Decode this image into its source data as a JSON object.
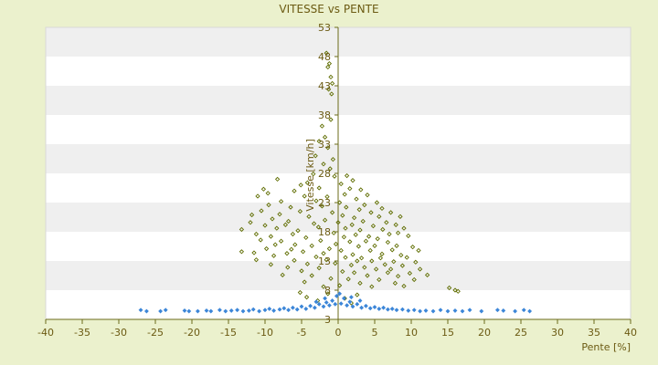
{
  "colors": {
    "background": "#ebf1cd",
    "plot_band_light": "#ffffff",
    "plot_band_dark": "#efefef",
    "axis": "#6b6b1a",
    "text": "#6b5a12",
    "series_high": "#5f6d00",
    "series_low": "#3c86d8"
  },
  "chart_data": {
    "type": "scatter",
    "title": "VITESSE vs PENTE",
    "xlabel": "Pente [%]",
    "ylabel": "Vitesse [km/h]",
    "xlim": [
      -40,
      40
    ],
    "ylim": [
      3,
      53
    ],
    "x_ticks": [
      -40,
      -35,
      -30,
      -25,
      -20,
      -15,
      -10,
      -5,
      0,
      5,
      10,
      15,
      20,
      25,
      30,
      35,
      40
    ],
    "y_ticks": [
      3,
      8,
      13,
      18,
      23,
      28,
      33,
      38,
      43,
      48,
      53
    ],
    "grid": "horizontal-bands",
    "legend": "none",
    "series": [
      {
        "marker": "diamond",
        "color": "#5f6d00",
        "points": [
          [
            -1.6,
            48.6
          ],
          [
            -1.2,
            46.8
          ],
          [
            -1.4,
            46.2
          ],
          [
            -1.0,
            44.5
          ],
          [
            -0.8,
            43.4
          ],
          [
            -1.3,
            42.4
          ],
          [
            -0.9,
            41.6
          ],
          [
            -1.0,
            37.2
          ],
          [
            -2.2,
            36.1
          ],
          [
            -1.8,
            34.2
          ],
          [
            -2.6,
            33.5
          ],
          [
            -1.4,
            32.4
          ],
          [
            -3.1,
            31.0
          ],
          [
            -0.7,
            30.4
          ],
          [
            -2.0,
            29.6
          ],
          [
            -1.1,
            28.8
          ],
          [
            -3.4,
            27.9
          ],
          [
            -0.5,
            27.5
          ],
          [
            -4.2,
            26.4
          ],
          [
            1.2,
            27.6
          ],
          [
            2.0,
            26.8
          ],
          [
            0.4,
            26.2
          ],
          [
            -8.3,
            27.0
          ],
          [
            -5.1,
            26.0
          ],
          [
            3.1,
            25.2
          ],
          [
            -2.6,
            25.5
          ],
          [
            1.6,
            25.4
          ],
          [
            0.9,
            24.4
          ],
          [
            -10.2,
            25.3
          ],
          [
            -9.6,
            24.6
          ],
          [
            -6.0,
            25.0
          ],
          [
            -4.6,
            24.1
          ],
          [
            -1.5,
            24.0
          ],
          [
            2.5,
            23.6
          ],
          [
            4.0,
            24.3
          ],
          [
            -11.0,
            24.1
          ],
          [
            -7.8,
            23.2
          ],
          [
            -3.0,
            23.3
          ],
          [
            0.2,
            23.0
          ],
          [
            3.6,
            22.6
          ],
          [
            5.3,
            23.0
          ],
          [
            -9.5,
            22.6
          ],
          [
            -6.5,
            22.2
          ],
          [
            -2.2,
            22.4
          ],
          [
            1.1,
            22.2
          ],
          [
            2.9,
            21.8
          ],
          [
            6.0,
            22.0
          ],
          [
            -10.5,
            21.6
          ],
          [
            -8.0,
            21.0
          ],
          [
            -5.2,
            21.5
          ],
          [
            -0.8,
            21.3
          ],
          [
            4.5,
            21.3
          ],
          [
            7.2,
            21.3
          ],
          [
            -11.8,
            20.9
          ],
          [
            -4.0,
            20.6
          ],
          [
            0.6,
            20.8
          ],
          [
            2.2,
            20.4
          ],
          [
            5.6,
            20.6
          ],
          [
            8.5,
            20.6
          ],
          [
            -9.0,
            20.2
          ],
          [
            -6.8,
            19.8
          ],
          [
            -1.8,
            20.0
          ],
          [
            3.4,
            19.8
          ],
          [
            6.6,
            19.6
          ],
          [
            -12.0,
            19.6
          ],
          [
            -10.0,
            19.1
          ],
          [
            -7.2,
            19.2
          ],
          [
            -3.3,
            19.4
          ],
          [
            0.0,
            19.6
          ],
          [
            1.9,
            19.2
          ],
          [
            4.8,
            19.0
          ],
          [
            7.9,
            19.2
          ],
          [
            9.0,
            18.6
          ],
          [
            -8.4,
            18.6
          ],
          [
            -5.5,
            18.2
          ],
          [
            -2.7,
            18.8
          ],
          [
            1.0,
            18.6
          ],
          [
            3.0,
            18.3
          ],
          [
            6.1,
            18.4
          ],
          [
            8.2,
            17.8
          ],
          [
            -13.2,
            18.4
          ],
          [
            -11.2,
            17.6
          ],
          [
            -6.2,
            17.6
          ],
          [
            -0.6,
            17.8
          ],
          [
            2.4,
            17.5
          ],
          [
            4.2,
            17.2
          ],
          [
            7.0,
            17.6
          ],
          [
            9.6,
            17.3
          ],
          [
            -9.2,
            17.2
          ],
          [
            -4.4,
            17.0
          ],
          [
            0.8,
            17.1
          ],
          [
            5.4,
            16.8
          ],
          [
            -10.6,
            16.6
          ],
          [
            -7.8,
            16.4
          ],
          [
            -2.4,
            16.5
          ],
          [
            1.6,
            16.3
          ],
          [
            3.8,
            16.4
          ],
          [
            6.8,
            16.2
          ],
          [
            -8.6,
            15.8
          ],
          [
            -5.9,
            15.8
          ],
          [
            -3.6,
            15.6
          ],
          [
            -0.3,
            15.9
          ],
          [
            2.8,
            15.5
          ],
          [
            5.0,
            15.6
          ],
          [
            8.0,
            15.6
          ],
          [
            10.2,
            15.4
          ],
          [
            -13.2,
            14.6
          ],
          [
            -9.8,
            15.1
          ],
          [
            -6.4,
            15.0
          ],
          [
            -1.2,
            15.1
          ],
          [
            0.4,
            14.8
          ],
          [
            4.4,
            14.8
          ],
          [
            7.4,
            14.9
          ],
          [
            11.0,
            14.8
          ],
          [
            -11.5,
            14.4
          ],
          [
            -7.0,
            14.3
          ],
          [
            -4.8,
            14.6
          ],
          [
            -2.0,
            14.3
          ],
          [
            2.0,
            14.1
          ],
          [
            6.0,
            14.2
          ],
          [
            8.6,
            14.0
          ],
          [
            -8.8,
            13.9
          ],
          [
            -3.0,
            13.7
          ],
          [
            1.0,
            13.6
          ],
          [
            3.2,
            13.5
          ],
          [
            5.8,
            13.5
          ],
          [
            9.4,
            13.6
          ],
          [
            -11.2,
            13.2
          ],
          [
            -6.0,
            13.1
          ],
          [
            -1.6,
            13.2
          ],
          [
            2.6,
            13.0
          ],
          [
            4.6,
            13.0
          ],
          [
            7.6,
            12.9
          ],
          [
            10.6,
            12.8
          ],
          [
            -9.2,
            12.4
          ],
          [
            -4.2,
            12.5
          ],
          [
            -0.4,
            12.6
          ],
          [
            1.8,
            12.3
          ],
          [
            6.4,
            12.4
          ],
          [
            8.8,
            12.2
          ],
          [
            -6.9,
            11.9
          ],
          [
            -2.6,
            11.8
          ],
          [
            3.6,
            11.9
          ],
          [
            5.2,
            11.6
          ],
          [
            7.2,
            11.6
          ],
          [
            11.2,
            11.6
          ],
          [
            -5.0,
            11.3
          ],
          [
            0.6,
            11.2
          ],
          [
            2.2,
            11.0
          ],
          [
            6.8,
            11.0
          ],
          [
            9.8,
            10.9
          ],
          [
            -7.6,
            10.6
          ],
          [
            -3.6,
            10.5
          ],
          [
            4.0,
            10.5
          ],
          [
            8.2,
            10.4
          ],
          [
            12.2,
            10.6
          ],
          [
            -1.0,
            10.0
          ],
          [
            1.4,
            9.9
          ],
          [
            5.6,
            9.8
          ],
          [
            10.4,
            9.8
          ],
          [
            -4.6,
            9.4
          ],
          [
            3.0,
            9.2
          ],
          [
            7.8,
            9.2
          ],
          [
            -2.0,
            8.6
          ],
          [
            0.2,
            8.8
          ],
          [
            4.6,
            8.6
          ],
          [
            9.0,
            8.7
          ],
          [
            15.2,
            8.4
          ],
          [
            16.0,
            8.0
          ],
          [
            16.4,
            7.8
          ],
          [
            -5.2,
            7.6
          ],
          [
            -1.4,
            7.4
          ],
          [
            2.6,
            7.2
          ],
          [
            -4.3,
            6.8
          ],
          [
            0.9,
            6.6
          ],
          [
            -2.8,
            6.2
          ],
          [
            1.8,
            5.8
          ]
        ]
      },
      {
        "marker": "diamond",
        "color": "#3c86d8",
        "points": [
          [
            -27.0,
            4.6
          ],
          [
            -26.2,
            4.4
          ],
          [
            -24.3,
            4.4
          ],
          [
            -23.6,
            4.6
          ],
          [
            -21.0,
            4.5
          ],
          [
            -20.4,
            4.4
          ],
          [
            -19.2,
            4.4
          ],
          [
            -18.0,
            4.5
          ],
          [
            -17.4,
            4.4
          ],
          [
            -16.2,
            4.6
          ],
          [
            -15.4,
            4.4
          ],
          [
            -14.6,
            4.5
          ],
          [
            -13.8,
            4.6
          ],
          [
            -13.0,
            4.4
          ],
          [
            -12.2,
            4.5
          ],
          [
            -11.6,
            4.7
          ],
          [
            -10.8,
            4.4
          ],
          [
            -10.0,
            4.6
          ],
          [
            -9.4,
            4.8
          ],
          [
            -8.8,
            4.5
          ],
          [
            -8.0,
            4.7
          ],
          [
            -7.4,
            4.9
          ],
          [
            -6.8,
            4.6
          ],
          [
            -6.2,
            5.0
          ],
          [
            -5.6,
            4.7
          ],
          [
            -5.0,
            5.2
          ],
          [
            -4.4,
            4.8
          ],
          [
            -3.8,
            5.3
          ],
          [
            -3.2,
            5.0
          ],
          [
            -2.6,
            5.6
          ],
          [
            -2.0,
            5.2
          ],
          [
            -1.6,
            5.9
          ],
          [
            -1.2,
            5.4
          ],
          [
            -0.8,
            6.2
          ],
          [
            -0.4,
            5.6
          ],
          [
            0.4,
            5.7
          ],
          [
            0.8,
            6.6
          ],
          [
            1.2,
            5.4
          ],
          [
            1.6,
            6.0
          ],
          [
            2.0,
            5.2
          ],
          [
            2.6,
            5.6
          ],
          [
            3.2,
            5.0
          ],
          [
            3.8,
            5.3
          ],
          [
            4.4,
            4.9
          ],
          [
            5.0,
            5.1
          ],
          [
            5.6,
            4.8
          ],
          [
            6.2,
            5.0
          ],
          [
            6.8,
            4.7
          ],
          [
            7.4,
            4.8
          ],
          [
            8.0,
            4.6
          ],
          [
            8.8,
            4.7
          ],
          [
            9.6,
            4.5
          ],
          [
            10.4,
            4.6
          ],
          [
            11.2,
            4.4
          ],
          [
            12.0,
            4.5
          ],
          [
            13.0,
            4.4
          ],
          [
            14.0,
            4.6
          ],
          [
            15.0,
            4.4
          ],
          [
            16.0,
            4.5
          ],
          [
            17.0,
            4.4
          ],
          [
            18.0,
            4.6
          ],
          [
            19.6,
            4.4
          ],
          [
            21.8,
            4.6
          ],
          [
            22.6,
            4.5
          ],
          [
            24.2,
            4.4
          ],
          [
            25.4,
            4.6
          ],
          [
            26.2,
            4.4
          ],
          [
            -3.0,
            6.0
          ],
          [
            -1.8,
            6.6
          ],
          [
            1.8,
            6.8
          ],
          [
            3.0,
            6.2
          ],
          [
            -0.2,
            7.0
          ],
          [
            0.2,
            7.4
          ]
        ]
      }
    ]
  }
}
